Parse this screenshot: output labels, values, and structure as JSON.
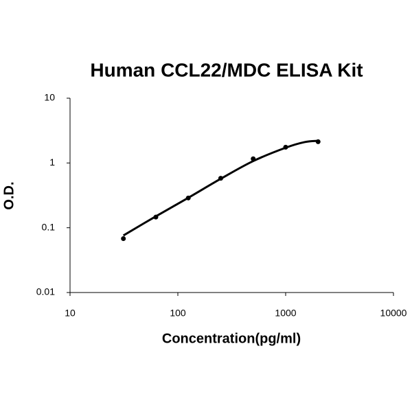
{
  "chart_data": {
    "type": "scatter",
    "title": "Human CCL22/MDC ELISA Kit",
    "x_label": "Concentration(pg/ml)",
    "y_label": "O.D.",
    "x_log": true,
    "y_log": true,
    "xlim": [
      10,
      10000
    ],
    "xticks": [
      10,
      100,
      1000,
      10000
    ],
    "ylim": [
      0.01,
      10
    ],
    "yticks": [
      0.01,
      0.1,
      1,
      10
    ],
    "grid": false,
    "series": [
      {
        "mode": "markers",
        "color": "#000000",
        "x": [
          31.25,
          62.5,
          125,
          250,
          500,
          1000,
          2000
        ],
        "values": [
          0.068,
          0.146,
          0.288,
          0.58,
          1.16,
          1.75,
          2.13
        ]
      },
      {
        "mode": "line",
        "color": "#000000",
        "x": [
          31.25,
          62.5,
          125,
          250,
          500,
          1000,
          1500,
          2000
        ],
        "values": [
          0.076,
          0.15,
          0.29,
          0.57,
          1.07,
          1.72,
          2.1,
          2.2
        ]
      }
    ]
  }
}
